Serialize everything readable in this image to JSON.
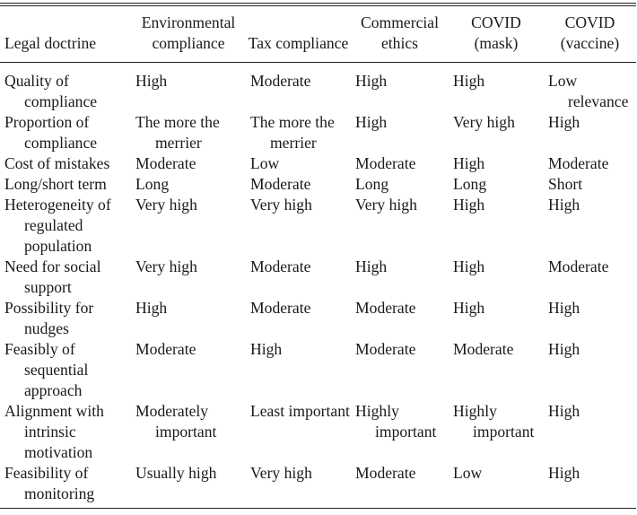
{
  "table": {
    "headers": [
      "Legal doctrine",
      "Environmental compliance",
      "Tax compliance",
      "Commercial ethics",
      "COVID (mask)",
      "COVID (vaccine)"
    ],
    "rows": [
      [
        "Quality of compliance",
        "High",
        "Moderate",
        "High",
        "High",
        "Low relevance"
      ],
      [
        "Proportion of compliance",
        "The more the merrier",
        "The more the merrier",
        "High",
        "Very high",
        "High"
      ],
      [
        "Cost of mistakes",
        "Moderate",
        "Low",
        "Moderate",
        "High",
        "Moderate"
      ],
      [
        "Long/short term",
        "Long",
        "Moderate",
        "Long",
        "Long",
        "Short"
      ],
      [
        "Heterogeneity of regulated population",
        "Very high",
        "Very high",
        "Very high",
        "High",
        "High"
      ],
      [
        "Need for social support",
        "Very high",
        "Moderate",
        "High",
        "High",
        "Moderate"
      ],
      [
        "Possibility for nudges",
        "High",
        "Moderate",
        "Moderate",
        "High",
        "High"
      ],
      [
        "Feasibly of sequential approach",
        "Moderate",
        "High",
        "Moderate",
        "Moderate",
        "High"
      ],
      [
        "Alignment with intrinsic motivation",
        "Moderately important",
        "Least important",
        "Highly important",
        "Highly important",
        "High"
      ],
      [
        "Feasibility of monitoring",
        "Usually high",
        "Very high",
        "Moderate",
        "Low",
        "High"
      ]
    ]
  }
}
